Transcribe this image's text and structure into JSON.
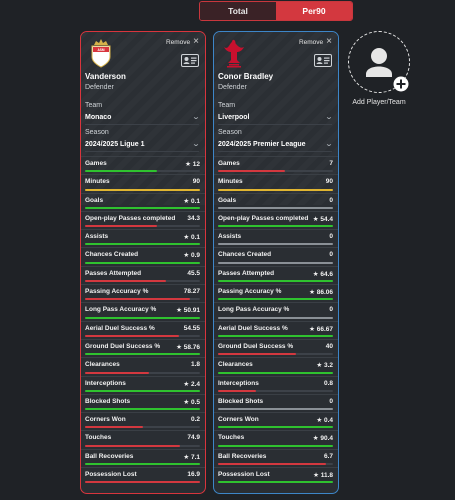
{
  "toggle": {
    "total_label": "Total",
    "per90_label": "Per90"
  },
  "colors": {
    "win": "#2fc22f",
    "lose": "#d3383f",
    "draw": "#e0b531",
    "neutral": "#8a9096",
    "card1_border": "#d8353d",
    "card2_border": "#3d86c8"
  },
  "add": {
    "label": "Add Player/Team"
  },
  "players": [
    {
      "remove_label": "Remove",
      "crest_icon": "monaco-crest-icon",
      "name": "Vanderson",
      "position": "Defender",
      "team_label": "Team",
      "team": "Monaco",
      "season_label": "Season",
      "season": "2024/2025 Ligue 1",
      "stats": [
        {
          "label": "Games",
          "value": "★ 12",
          "fill": 0.63,
          "color": "#2fc22f"
        },
        {
          "label": "Minutes",
          "value": "90",
          "fill": 1.0,
          "color": "#e0b531"
        },
        {
          "label": "Goals",
          "value": "★ 0.1",
          "fill": 1.0,
          "color": "#2fc22f"
        },
        {
          "label": "Open-play Passes completed",
          "value": "34.3",
          "fill": 0.63,
          "color": "#d3383f"
        },
        {
          "label": "Assists",
          "value": "★ 0.1",
          "fill": 1.0,
          "color": "#2fc22f"
        },
        {
          "label": "Chances Created",
          "value": "★ 0.9",
          "fill": 1.0,
          "color": "#2fc22f"
        },
        {
          "label": "Passes Attempted",
          "value": "45.5",
          "fill": 0.7,
          "color": "#d3383f"
        },
        {
          "label": "Passing Accuracy %",
          "value": "78.27",
          "fill": 0.91,
          "color": "#d3383f"
        },
        {
          "label": "Long Pass Accuracy %",
          "value": "★ 50.91",
          "fill": 1.0,
          "color": "#2fc22f"
        },
        {
          "label": "Aerial Duel Success %",
          "value": "54.55",
          "fill": 0.82,
          "color": "#d3383f"
        },
        {
          "label": "Ground Duel Success %",
          "value": "★ 58.76",
          "fill": 1.0,
          "color": "#2fc22f"
        },
        {
          "label": "Clearances",
          "value": "1.8",
          "fill": 0.56,
          "color": "#d3383f"
        },
        {
          "label": "Interceptions",
          "value": "★ 2.4",
          "fill": 1.0,
          "color": "#2fc22f"
        },
        {
          "label": "Blocked Shots",
          "value": "★ 0.5",
          "fill": 1.0,
          "color": "#2fc22f"
        },
        {
          "label": "Corners Won",
          "value": "0.2",
          "fill": 0.5,
          "color": "#d3383f"
        },
        {
          "label": "Touches",
          "value": "74.9",
          "fill": 0.83,
          "color": "#d3383f"
        },
        {
          "label": "Ball Recoveries",
          "value": "★ 7.1",
          "fill": 1.0,
          "color": "#2fc22f"
        },
        {
          "label": "Possession Lost",
          "value": "16.9",
          "fill": 1.0,
          "color": "#d3383f"
        }
      ]
    },
    {
      "remove_label": "Remove",
      "crest_icon": "liverpool-crest-icon",
      "name": "Conor Bradley",
      "position": "Defender",
      "team_label": "Team",
      "team": "Liverpool",
      "season_label": "Season",
      "season": "2024/2025 Premier League",
      "stats": [
        {
          "label": "Games",
          "value": "7",
          "fill": 0.58,
          "color": "#d3383f"
        },
        {
          "label": "Minutes",
          "value": "90",
          "fill": 1.0,
          "color": "#e0b531"
        },
        {
          "label": "Goals",
          "value": "0",
          "fill": 1.0,
          "color": "#8a9096"
        },
        {
          "label": "Open-play Passes completed",
          "value": "★ 54.4",
          "fill": 1.0,
          "color": "#2fc22f"
        },
        {
          "label": "Assists",
          "value": "0",
          "fill": 1.0,
          "color": "#8a9096"
        },
        {
          "label": "Chances Created",
          "value": "0",
          "fill": 1.0,
          "color": "#8a9096"
        },
        {
          "label": "Passes Attempted",
          "value": "★ 64.6",
          "fill": 1.0,
          "color": "#2fc22f"
        },
        {
          "label": "Passing Accuracy %",
          "value": "★ 86.06",
          "fill": 1.0,
          "color": "#2fc22f"
        },
        {
          "label": "Long Pass Accuracy %",
          "value": "0",
          "fill": 1.0,
          "color": "#8a9096"
        },
        {
          "label": "Aerial Duel Success %",
          "value": "★ 66.67",
          "fill": 1.0,
          "color": "#2fc22f"
        },
        {
          "label": "Ground Duel Success %",
          "value": "40",
          "fill": 0.68,
          "color": "#d3383f"
        },
        {
          "label": "Clearances",
          "value": "★ 3.2",
          "fill": 1.0,
          "color": "#2fc22f"
        },
        {
          "label": "Interceptions",
          "value": "0.8",
          "fill": 0.33,
          "color": "#d3383f"
        },
        {
          "label": "Blocked Shots",
          "value": "0",
          "fill": 1.0,
          "color": "#8a9096"
        },
        {
          "label": "Corners Won",
          "value": "★ 0.4",
          "fill": 1.0,
          "color": "#2fc22f"
        },
        {
          "label": "Touches",
          "value": "★ 90.4",
          "fill": 1.0,
          "color": "#2fc22f"
        },
        {
          "label": "Ball Recoveries",
          "value": "6.7",
          "fill": 0.94,
          "color": "#d3383f"
        },
        {
          "label": "Possession Lost",
          "value": "★ 11.8",
          "fill": 1.0,
          "color": "#2fc22f"
        }
      ]
    }
  ]
}
